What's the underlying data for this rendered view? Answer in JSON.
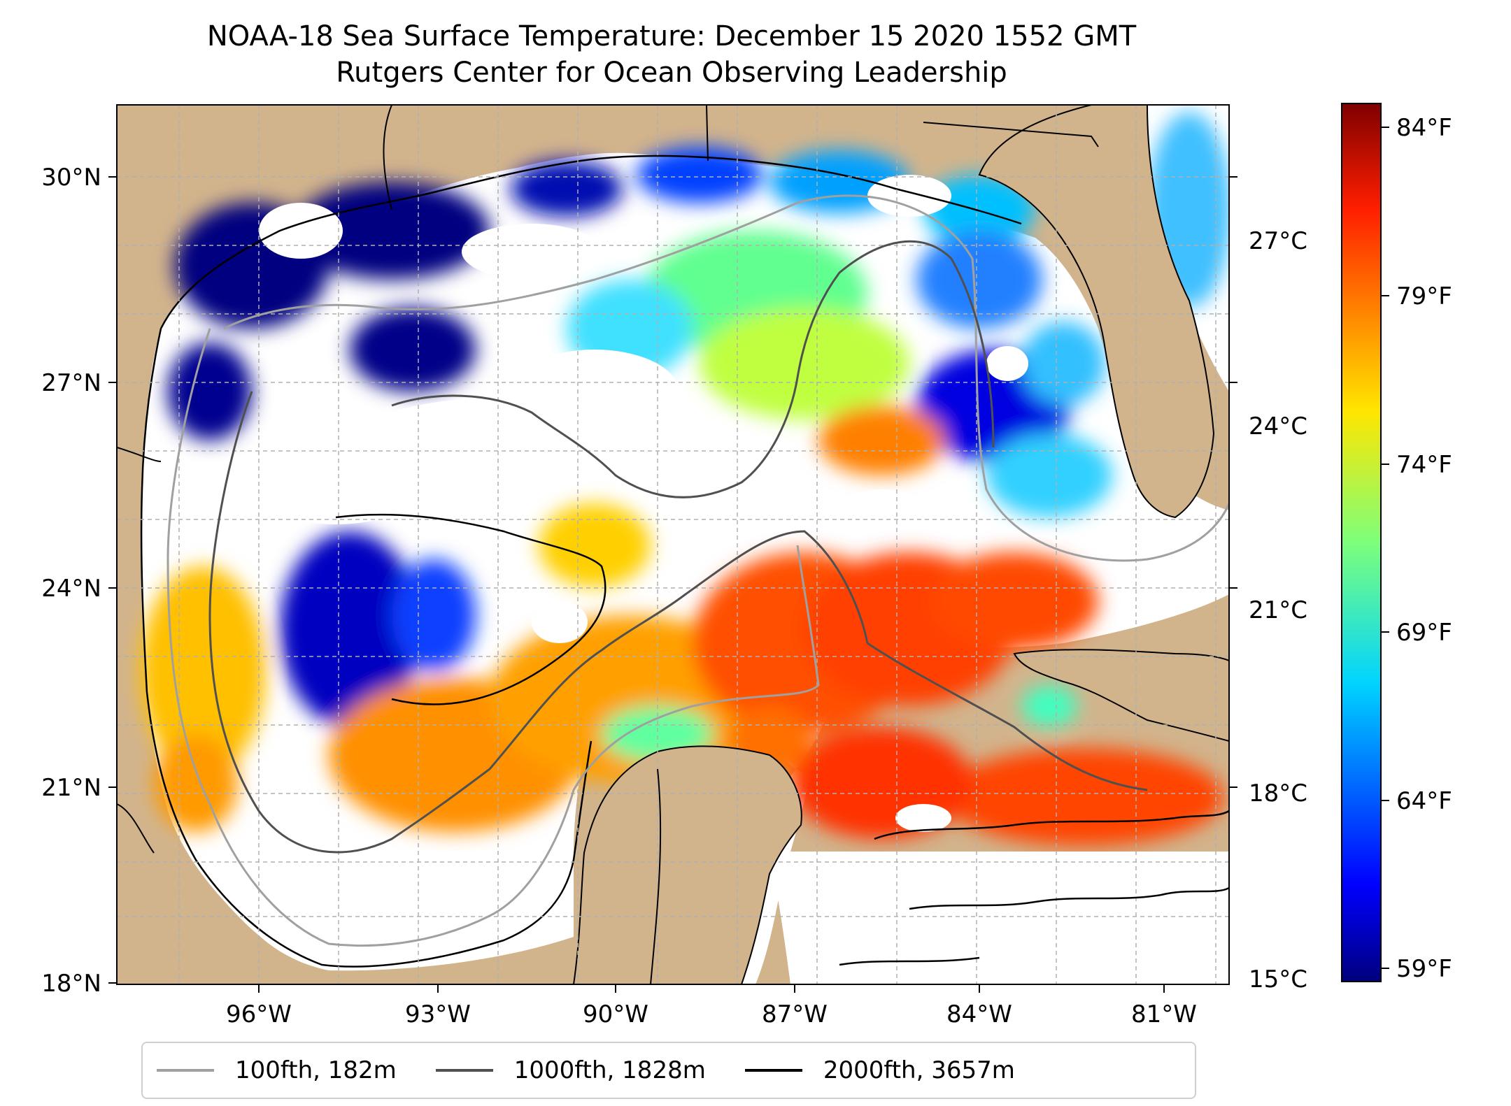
{
  "title": {
    "line1": "NOAA-18 Sea Surface Temperature: December 15 2020 1552 GMT",
    "line2": "Rutgers Center for Ocean Observing Leadership"
  },
  "map": {
    "lat_ticks": [
      "30°N",
      "27°N",
      "24°N",
      "21°N",
      "18°N"
    ],
    "lon_ticks": [
      "96°W",
      "93°W",
      "90°W",
      "87°W",
      "84°W",
      "81°W"
    ],
    "land_color": "#d2b48c",
    "no_data_color": "#ffffff",
    "gridlines": "dashed"
  },
  "colorbar": {
    "colormap": "jet",
    "celsius_ticks": [
      "27°C",
      "24°C",
      "21°C",
      "18°C",
      "15°C"
    ],
    "fahrenheit_ticks": [
      "84°F",
      "79°F",
      "74°F",
      "69°F",
      "64°F",
      "59°F"
    ],
    "range_c": [
      15,
      28.9
    ]
  },
  "legend": {
    "items": [
      {
        "label": "100fth, 182m",
        "color": "#a0a0a0"
      },
      {
        "label": "1000fth, 1828m",
        "color": "#505050"
      },
      {
        "label": "2000fth, 3657m",
        "color": "#000000"
      }
    ]
  }
}
